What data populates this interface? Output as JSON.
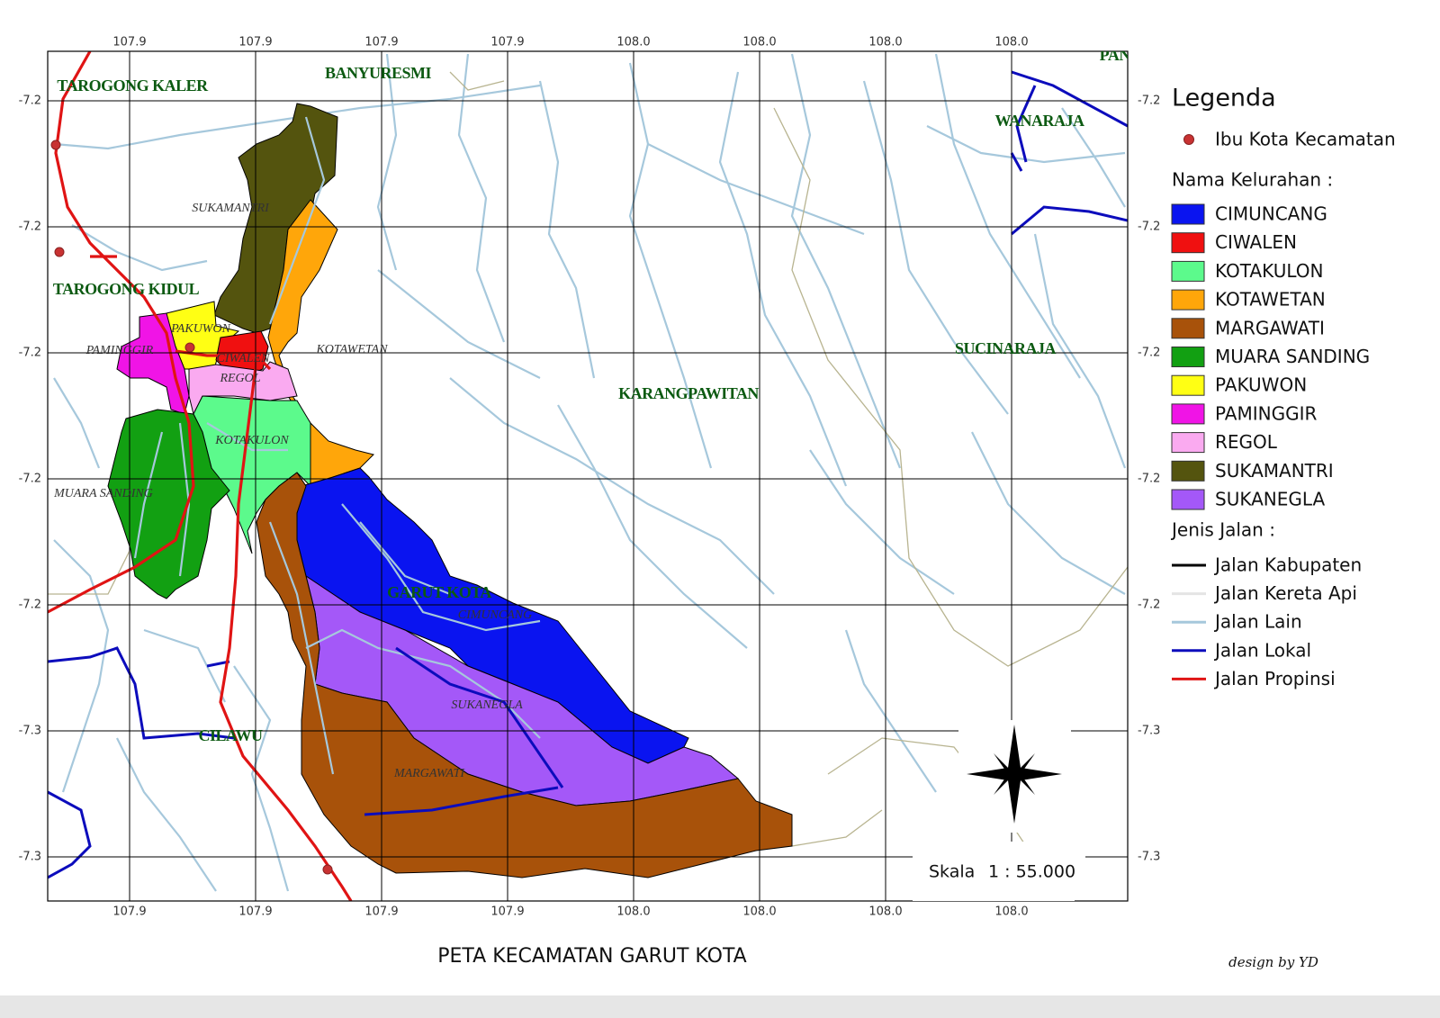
{
  "map": {
    "top_ticks": [
      "107.9",
      "107.9",
      "107.9",
      "107.9",
      "108.0",
      "108.0",
      "108.0",
      "108.0"
    ],
    "bottom_ticks": [
      "107.9",
      "107.9",
      "107.9",
      "107.9",
      "108.0",
      "108.0",
      "108.0",
      "108.0"
    ],
    "left_ticks": [
      "-7.2",
      "-7.2",
      "-7.2",
      "-7.2",
      "-7.2",
      "-7.3",
      "-7.3"
    ],
    "right_ticks": [
      "-7.2",
      "-7.2",
      "-7.2",
      "-7.2",
      "-7.2",
      "-7.3",
      "-7.3"
    ],
    "district_labels": [
      "TAROGONG KALER",
      "BANYURESMI",
      "PANU",
      "WANARAJA",
      "TAROGONG KIDUL",
      "SUCINARAJA",
      "KARANGPAWITAN",
      "GARUT KOTA",
      "CILAWU"
    ],
    "village_labels": [
      "SUKAMANTRI",
      "PAKUWON",
      "PAMINGGIR",
      "CIWALEN",
      "KOTAWETAN",
      "REGOL",
      "KOTAKULON",
      "MUARA SANDING",
      "CIMUNCANG",
      "SUKANEGLA",
      "MARGAWATI"
    ],
    "scale_label": "Skala",
    "scale_value": "1 : 55.000",
    "title": "PETA KECAMATAN GARUT KOTA",
    "credit": "design by YD"
  },
  "legend": {
    "title": "Legenda",
    "capital": "Ibu Kota Kecamatan",
    "villages_heading": "Nama Kelurahan :",
    "villages": [
      {
        "name": "CIMUNCANG",
        "color": "#0a14f0"
      },
      {
        "name": "CIWALEN",
        "color": "#f01010"
      },
      {
        "name": "KOTAKULON",
        "color": "#5cfa8c"
      },
      {
        "name": "KOTAWETAN",
        "color": "#ffa60a"
      },
      {
        "name": "MARGAWATI",
        "color": "#a8520a"
      },
      {
        "name": "MUARA SANDING",
        "color": "#12a012"
      },
      {
        "name": "PAKUWON",
        "color": "#ffff14"
      },
      {
        "name": "PAMINGGIR",
        "color": "#f014e6"
      },
      {
        "name": "REGOL",
        "color": "#faaaf0"
      },
      {
        "name": "SUKAMANTRI",
        "color": "#54540e"
      },
      {
        "name": "SUKANEGLA",
        "color": "#a458f8"
      }
    ],
    "roads_heading": "Jenis Jalan :",
    "roads": [
      {
        "name": "Jalan Kabupaten",
        "color": "#000000"
      },
      {
        "name": "Jalan Kereta Api",
        "color": "#e4e4e4"
      },
      {
        "name": "Jalan Lain",
        "color": "#a6c8dc"
      },
      {
        "name": "Jalan Lokal",
        "color": "#0c0cbc"
      },
      {
        "name": "Jalan Propinsi",
        "color": "#e01414"
      }
    ]
  }
}
